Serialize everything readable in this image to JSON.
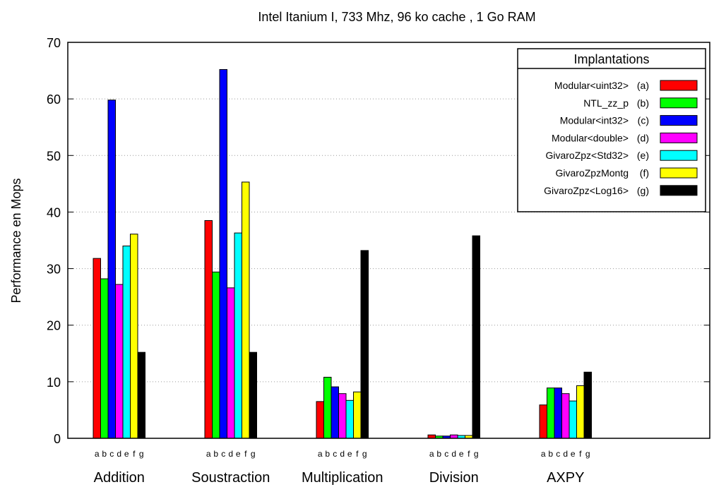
{
  "chart_data": {
    "type": "bar",
    "title": "Intel Itanium I, 733 Mhz, 96 ko cache , 1 Go RAM",
    "ylabel": "Performance en Mops",
    "xlabel": "",
    "ylim": [
      0,
      70
    ],
    "yticks": [
      0,
      10,
      20,
      30,
      40,
      50,
      60,
      70
    ],
    "grid": "horizontal dotted",
    "legend_title": "Implantations",
    "legend_position": "top-right",
    "categories": [
      "Addition",
      "Soustraction",
      "Multiplication",
      "Division",
      "AXPY"
    ],
    "sub_labels": [
      "a",
      "b",
      "c",
      "d",
      "e",
      "f",
      "g"
    ],
    "series": [
      {
        "name": "Modular<uint32>",
        "letter": "(a)",
        "color": "#ff0000",
        "values": [
          31.8,
          38.5,
          6.5,
          0.6,
          5.9
        ]
      },
      {
        "name": "NTL_zz_p",
        "letter": "(b)",
        "color": "#00ff00",
        "values": [
          28.2,
          29.4,
          10.8,
          0.4,
          8.9
        ]
      },
      {
        "name": "Modular<int32>",
        "letter": "(c)",
        "color": "#0000ff",
        "values": [
          59.8,
          65.2,
          9.1,
          0.4,
          8.9
        ]
      },
      {
        "name": "Modular<double>",
        "letter": "(d)",
        "color": "#ff00ff",
        "values": [
          27.2,
          26.6,
          7.9,
          0.6,
          7.9
        ]
      },
      {
        "name": "GivaroZpz<Std32>",
        "letter": "(e)",
        "color": "#00ffff",
        "values": [
          34.0,
          36.3,
          6.7,
          0.5,
          6.6
        ]
      },
      {
        "name": "GivaroZpzMontg",
        "letter": "(f)",
        "color": "#ffff00",
        "values": [
          36.1,
          45.3,
          8.2,
          0.5,
          9.3
        ]
      },
      {
        "name": "GivaroZpz<Log16>",
        "letter": "(g)",
        "color": "#000000",
        "values": [
          15.2,
          15.2,
          33.2,
          35.8,
          11.7
        ]
      }
    ]
  }
}
